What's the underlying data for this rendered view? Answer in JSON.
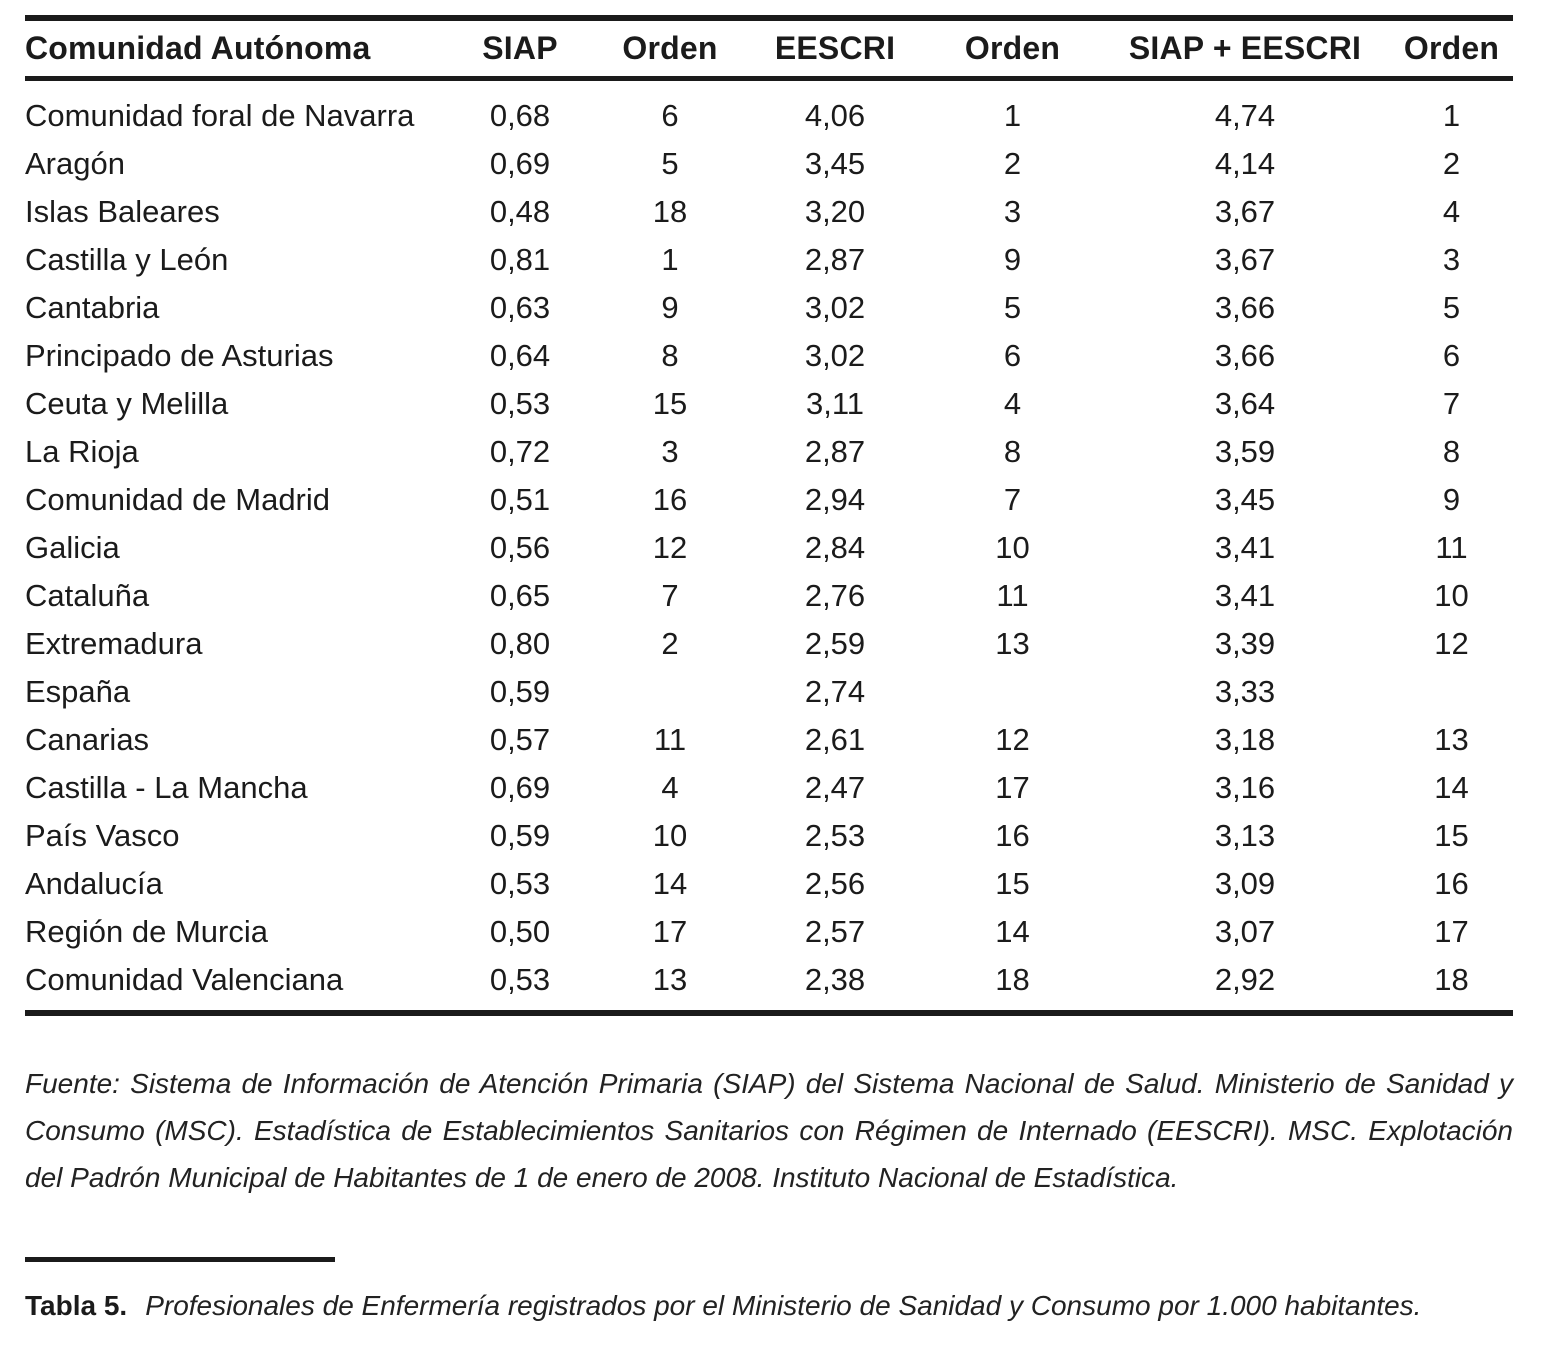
{
  "table": {
    "columns": [
      "Comunidad Autónoma",
      "SIAP",
      "Orden",
      "EESCRI",
      "Orden",
      "SIAP + EESCRI",
      "Orden"
    ],
    "rows": [
      [
        "Comunidad foral de Navarra",
        "0,68",
        "6",
        "4,06",
        "1",
        "4,74",
        "1"
      ],
      [
        "Aragón",
        "0,69",
        "5",
        "3,45",
        "2",
        "4,14",
        "2"
      ],
      [
        "Islas Baleares",
        "0,48",
        "18",
        "3,20",
        "3",
        "3,67",
        "4"
      ],
      [
        "Castilla y León",
        "0,81",
        "1",
        "2,87",
        "9",
        "3,67",
        "3"
      ],
      [
        "Cantabria",
        "0,63",
        "9",
        "3,02",
        "5",
        "3,66",
        "5"
      ],
      [
        "Principado de Asturias",
        "0,64",
        "8",
        "3,02",
        "6",
        "3,66",
        "6"
      ],
      [
        "Ceuta y Melilla",
        "0,53",
        "15",
        "3,11",
        "4",
        "3,64",
        "7"
      ],
      [
        "La Rioja",
        "0,72",
        "3",
        "2,87",
        "8",
        "3,59",
        "8"
      ],
      [
        "Comunidad de Madrid",
        "0,51",
        "16",
        "2,94",
        "7",
        "3,45",
        "9"
      ],
      [
        "Galicia",
        "0,56",
        "12",
        "2,84",
        "10",
        "3,41",
        "11"
      ],
      [
        "Cataluña",
        "0,65",
        "7",
        "2,76",
        "11",
        "3,41",
        "10"
      ],
      [
        "Extremadura",
        "0,80",
        "2",
        "2,59",
        "13",
        "3,39",
        "12"
      ],
      [
        "España",
        "0,59",
        "",
        "2,74",
        "",
        "3,33",
        ""
      ],
      [
        "Canarias",
        "0,57",
        "11",
        "2,61",
        "12",
        "3,18",
        "13"
      ],
      [
        "Castilla - La Mancha",
        "0,69",
        "4",
        "2,47",
        "17",
        "3,16",
        "14"
      ],
      [
        "País Vasco",
        "0,59",
        "10",
        "2,53",
        "16",
        "3,13",
        "15"
      ],
      [
        "Andalucía",
        "0,53",
        "14",
        "2,56",
        "15",
        "3,09",
        "16"
      ],
      [
        "Región de Murcia",
        "0,50",
        "17",
        "2,57",
        "14",
        "3,07",
        "17"
      ],
      [
        "Comunidad Valenciana",
        "0,53",
        "13",
        "2,38",
        "18",
        "2,92",
        "18"
      ]
    ]
  },
  "source_note": {
    "text": "Fuente: Sistema de Información de Atención Primaria (SIAP) del Sistema Nacional de Salud. Ministerio de Sanidad y Consumo (MSC). Estadística de Establecimientos Sanitarios con Régimen de Internado (EESCRI). MSC. Explotación del Padrón Municipal de Habitantes de 1 de enero de 2008. Instituto Nacional de Estadística."
  },
  "caption": {
    "label": "Tabla 5.",
    "text": "Profesionales de Enfermería registrados por el Ministerio de Sanidad y Consumo por 1.000 habitantes."
  }
}
